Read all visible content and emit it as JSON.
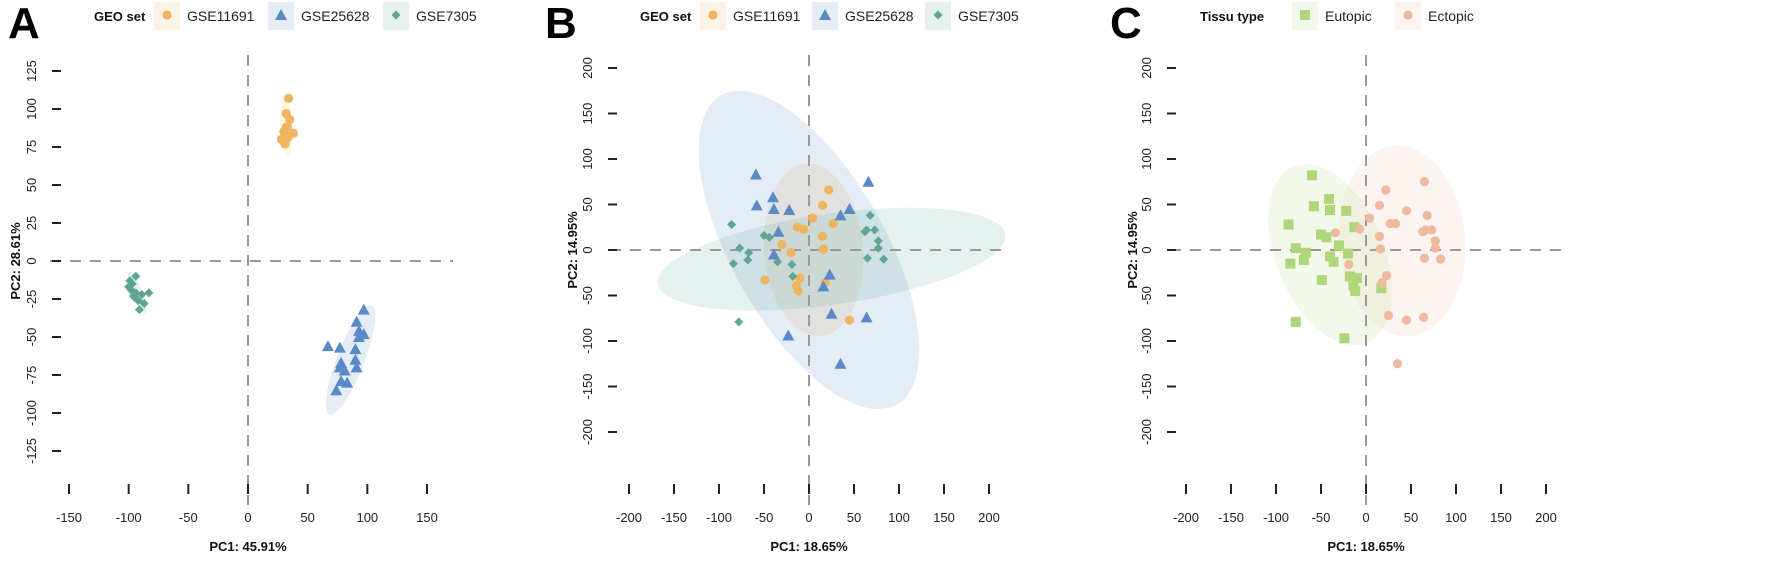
{
  "colors": {
    "GSE11691": "#EDB55F",
    "GSE25628": "#5A8AC6",
    "GSE7305": "#5FA594",
    "Eutopic": "#AED77A",
    "Ectopic": "#EEB9A0"
  },
  "chart_data": [
    {
      "panel": "A",
      "type": "scatter",
      "legend_title": "GEO set",
      "xlabel": "PC1: 45.91%",
      "ylabel": "PC2: 28.61%",
      "xlim": [
        -150,
        150
      ],
      "ylim": [
        -125,
        125
      ],
      "xticks": [
        -150,
        -100,
        -50,
        0,
        50,
        100,
        150
      ],
      "yticks": [
        -125,
        -100,
        -75,
        -50,
        -25,
        0,
        25,
        50,
        75,
        100,
        125
      ],
      "series": [
        {
          "name": "GSE11691",
          "marker": "circle",
          "color": "#EDB55F",
          "ellipse": {
            "center": [
              32,
              88
            ],
            "a": 19,
            "b": 5,
            "angle": 95
          },
          "points": [
            [
              34,
              107
            ],
            [
              32,
              97
            ],
            [
              35,
              93
            ],
            [
              33,
              88
            ],
            [
              38,
              84
            ],
            [
              30,
              85
            ],
            [
              28,
              80
            ],
            [
              31,
              77
            ],
            [
              33,
              81
            ],
            [
              32,
              88
            ],
            [
              30,
              79
            ],
            [
              34,
              82
            ]
          ]
        },
        {
          "name": "GSE25628",
          "marker": "triangle",
          "color": "#5A8AC6",
          "ellipse": {
            "center": [
              86,
              -65
            ],
            "a": 40,
            "b": 11,
            "angle": 63
          },
          "points": [
            [
              97,
              -32
            ],
            [
              91,
              -40
            ],
            [
              93,
              -46
            ],
            [
              97,
              -48
            ],
            [
              93,
              -50
            ],
            [
              67,
              -56
            ],
            [
              77,
              -57
            ],
            [
              90,
              -58
            ],
            [
              78,
              -67
            ],
            [
              90,
              -65
            ],
            [
              77,
              -70
            ],
            [
              81,
              -72
            ],
            [
              91,
              -70
            ],
            [
              78,
              -79
            ],
            [
              83,
              -80
            ],
            [
              74,
              -85
            ]
          ]
        },
        {
          "name": "GSE7305",
          "marker": "diamond",
          "color": "#5FA594",
          "ellipse": {
            "center": [
              -93,
              -21
            ],
            "a": 15,
            "b": 4.5,
            "angle": -62
          },
          "points": [
            [
              -94,
              -10
            ],
            [
              -99,
              -13
            ],
            [
              -100,
              -17
            ],
            [
              -98,
              -19
            ],
            [
              -94,
              -21
            ],
            [
              -83,
              -21
            ],
            [
              -89,
              -22
            ],
            [
              -96,
              -23
            ],
            [
              -92,
              -26
            ],
            [
              -87,
              -28
            ],
            [
              -91,
              -32
            ],
            [
              -95,
              -24
            ],
            [
              -97,
              -15
            ]
          ]
        }
      ]
    },
    {
      "panel": "B",
      "type": "scatter",
      "legend_title": "GEO set",
      "xlabel": "PC1: 18.65%",
      "ylabel": "PC2: 14.95%",
      "xlim": [
        -200,
        200
      ],
      "ylim": [
        -200,
        200
      ],
      "xticks": [
        -200,
        -150,
        -100,
        -50,
        0,
        50,
        100,
        150,
        200
      ],
      "yticks": [
        -200,
        -150,
        -100,
        -50,
        0,
        50,
        100,
        150,
        200
      ],
      "series": [
        {
          "name": "GSE11691",
          "marker": "circle",
          "color": "#EDB55F",
          "ellipse": {
            "center": [
              5,
              0
            ],
            "a": 95,
            "b": 55,
            "angle": 95
          },
          "points": [
            [
              22,
              66
            ],
            [
              15,
              49
            ],
            [
              4,
              35
            ],
            [
              27,
              29
            ],
            [
              -13,
              25
            ],
            [
              -6,
              23
            ],
            [
              15,
              15
            ],
            [
              -30,
              6
            ],
            [
              16,
              1
            ],
            [
              -20,
              -3
            ],
            [
              -49,
              -33
            ],
            [
              -10,
              -31
            ],
            [
              18,
              -36
            ],
            [
              -14,
              -39
            ],
            [
              -12,
              -45
            ],
            [
              45,
              -77
            ]
          ]
        },
        {
          "name": "GSE25628",
          "marker": "triangle",
          "color": "#5A8AC6",
          "ellipse": {
            "center": [
              0,
              0
            ],
            "a": 196,
            "b": 85,
            "angle": 120
          },
          "points": [
            [
              -59,
              83
            ],
            [
              -40,
              58
            ],
            [
              -58,
              49
            ],
            [
              -39,
              45
            ],
            [
              -22,
              44
            ],
            [
              45,
              45
            ],
            [
              35,
              38
            ],
            [
              66,
              75
            ],
            [
              -34,
              20
            ],
            [
              -39,
              -5
            ],
            [
              23,
              -27
            ],
            [
              16,
              -40
            ],
            [
              25,
              -70
            ],
            [
              64,
              -74
            ],
            [
              -23,
              -94
            ],
            [
              35,
              -125
            ]
          ]
        },
        {
          "name": "GSE7305",
          "marker": "diamond",
          "color": "#5FA594",
          "ellipse": {
            "center": [
              25,
              -10
            ],
            "a": 195,
            "b": 50,
            "angle": 8
          },
          "points": [
            [
              -86,
              28
            ],
            [
              -77,
              2
            ],
            [
              -67,
              -3
            ],
            [
              -84,
              -15
            ],
            [
              -68,
              -11
            ],
            [
              -50,
              16
            ],
            [
              -44,
              14
            ],
            [
              -35,
              -13
            ],
            [
              -19,
              -16
            ],
            [
              -18,
              -29
            ],
            [
              68,
              38
            ],
            [
              62,
              20
            ],
            [
              64,
              22
            ],
            [
              73,
              22
            ],
            [
              77,
              10
            ],
            [
              77,
              2
            ],
            [
              65,
              -9
            ],
            [
              83,
              -10
            ],
            [
              -78,
              -79
            ]
          ]
        }
      ]
    },
    {
      "panel": "C",
      "type": "scatter",
      "legend_title": "Tissu type",
      "xlabel": "PC1: 18.65%",
      "ylabel": "PC2: 14.95%",
      "xlim": [
        -200,
        200
      ],
      "ylim": [
        -200,
        200
      ],
      "xticks": [
        -200,
        -150,
        -100,
        -50,
        0,
        50,
        100,
        150,
        200
      ],
      "yticks": [
        -200,
        -150,
        -100,
        -50,
        0,
        50,
        100,
        150,
        200
      ],
      "series": [
        {
          "name": "Eutopic",
          "marker": "square",
          "color": "#AED77A",
          "ellipse": {
            "center": [
              -40,
              -5
            ],
            "a": 105,
            "b": 60,
            "angle": 113
          },
          "points": [
            [
              -60,
              82
            ],
            [
              -41,
              56
            ],
            [
              -58,
              48
            ],
            [
              -40,
              44
            ],
            [
              -22,
              43
            ],
            [
              -86,
              28
            ],
            [
              -13,
              25
            ],
            [
              -50,
              17
            ],
            [
              -44,
              14
            ],
            [
              -30,
              5
            ],
            [
              -78,
              2
            ],
            [
              -67,
              -3
            ],
            [
              -20,
              -4
            ],
            [
              -40,
              -7
            ],
            [
              -69,
              -11
            ],
            [
              -36,
              -13
            ],
            [
              -84,
              -15
            ],
            [
              -49,
              -33
            ],
            [
              -18,
              -29
            ],
            [
              -10,
              -31
            ],
            [
              -14,
              -39
            ],
            [
              -12,
              -45
            ],
            [
              17,
              -42
            ],
            [
              -78,
              -79
            ],
            [
              -24,
              -97
            ]
          ]
        },
        {
          "name": "Ectopic",
          "marker": "circle",
          "color": "#EEB9A0",
          "ellipse": {
            "center": [
              40,
              10
            ],
            "a": 105,
            "b": 70,
            "angle": 95
          },
          "points": [
            [
              22,
              66
            ],
            [
              15,
              49
            ],
            [
              4,
              35
            ],
            [
              27,
              29
            ],
            [
              -7,
              23
            ],
            [
              -34,
              19
            ],
            [
              15,
              15
            ],
            [
              16,
              1
            ],
            [
              -19,
              -16
            ],
            [
              23,
              -28
            ],
            [
              18,
              -36
            ],
            [
              25,
              -72
            ],
            [
              65,
              75
            ],
            [
              45,
              43
            ],
            [
              68,
              38
            ],
            [
              63,
              20
            ],
            [
              66,
              22
            ],
            [
              73,
              22
            ],
            [
              77,
              10
            ],
            [
              77,
              2
            ],
            [
              65,
              -9
            ],
            [
              83,
              -10
            ],
            [
              64,
              -74
            ],
            [
              45,
              -77
            ],
            [
              35,
              -125
            ],
            [
              33,
              29
            ]
          ]
        }
      ]
    }
  ]
}
